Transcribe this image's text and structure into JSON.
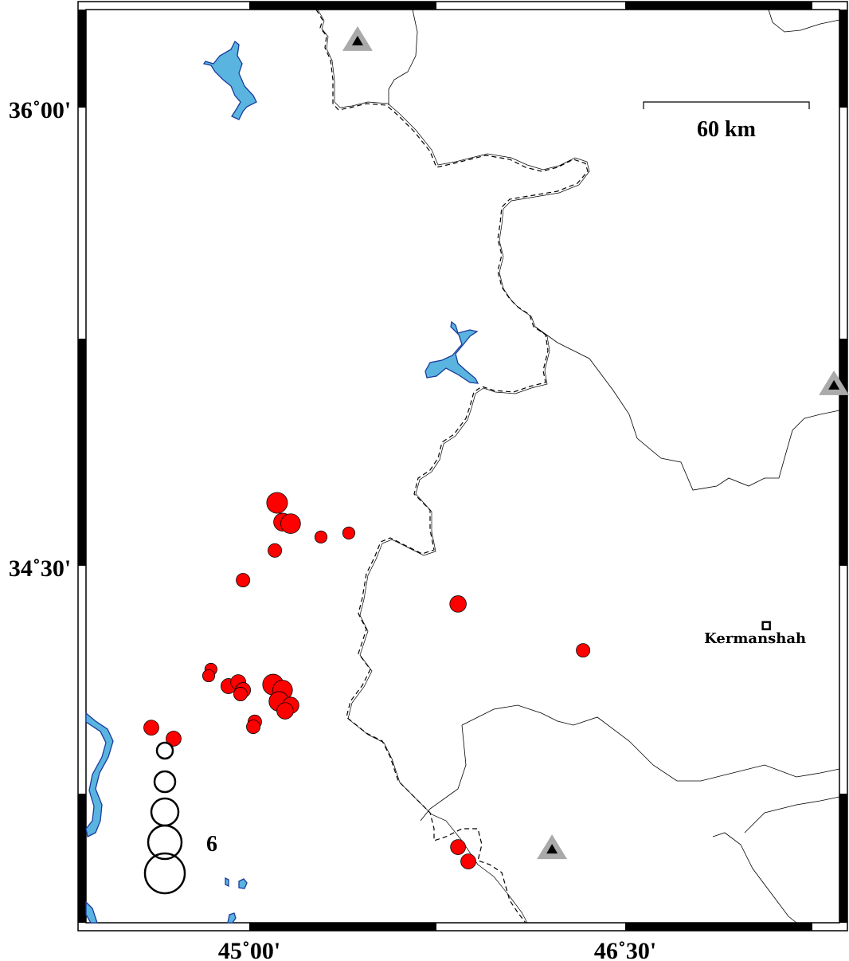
{
  "map": {
    "axes": {
      "lon_ticks": [
        {
          "value": 45.0,
          "label": "45˚00'"
        },
        {
          "value": 46.5,
          "label": "46˚30'"
        }
      ],
      "lat_ticks": [
        {
          "value": 36.0,
          "label": "36˚00'"
        },
        {
          "value": 34.5,
          "label": "34˚30'"
        }
      ]
    },
    "scale_bar": {
      "label": "60 km",
      "length_km": 60
    },
    "city": {
      "name": "Kermanshah",
      "lon": 47.063,
      "lat": 34.304
    },
    "stations": [
      {
        "lon": 45.432,
        "lat": 36.217
      },
      {
        "lon": 47.333,
        "lat": 35.09
      },
      {
        "lon": 46.208,
        "lat": 33.571
      }
    ],
    "earthquakes": [
      {
        "lon": 45.111,
        "lat": 34.706,
        "mag": 5.8
      },
      {
        "lon": 45.133,
        "lat": 34.643,
        "mag": 5.0
      },
      {
        "lon": 45.165,
        "lat": 34.638,
        "mag": 5.5
      },
      {
        "lon": 45.102,
        "lat": 34.55,
        "mag": 3.8
      },
      {
        "lon": 45.286,
        "lat": 34.594,
        "mag": 3.4
      },
      {
        "lon": 45.397,
        "lat": 34.607,
        "mag": 3.4
      },
      {
        "lon": 44.975,
        "lat": 34.453,
        "mag": 3.8
      },
      {
        "lon": 45.833,
        "lat": 34.375,
        "mag": 4.6
      },
      {
        "lon": 46.332,
        "lat": 34.223,
        "mag": 3.8
      },
      {
        "lon": 44.847,
        "lat": 34.161,
        "mag": 3.4
      },
      {
        "lon": 44.838,
        "lat": 34.14,
        "mag": 3.4
      },
      {
        "lon": 44.917,
        "lat": 34.106,
        "mag": 4.2
      },
      {
        "lon": 44.956,
        "lat": 34.119,
        "mag": 4.2
      },
      {
        "lon": 44.975,
        "lat": 34.093,
        "mag": 4.2
      },
      {
        "lon": 44.965,
        "lat": 34.08,
        "mag": 3.8
      },
      {
        "lon": 45.095,
        "lat": 34.111,
        "mag": 5.8
      },
      {
        "lon": 45.133,
        "lat": 34.093,
        "mag": 5.5
      },
      {
        "lon": 45.118,
        "lat": 34.056,
        "mag": 5.5
      },
      {
        "lon": 45.165,
        "lat": 34.043,
        "mag": 4.6
      },
      {
        "lon": 45.143,
        "lat": 34.025,
        "mag": 4.6
      },
      {
        "lon": 45.022,
        "lat": 33.989,
        "mag": 3.8
      },
      {
        "lon": 45.016,
        "lat": 33.973,
        "mag": 3.8
      },
      {
        "lon": 44.609,
        "lat": 33.97,
        "mag": 4.2
      },
      {
        "lon": 44.698,
        "lat": 33.934,
        "mag": 4.2
      },
      {
        "lon": 45.833,
        "lat": 33.579,
        "mag": 4.2
      },
      {
        "lon": 45.874,
        "lat": 33.532,
        "mag": 4.2
      }
    ],
    "legend": {
      "label": "6"
    },
    "colors": {
      "earthquake": "#ff0000",
      "water": "#5ab4e0",
      "water_outline": "#1a3a9a",
      "station_outer": "#aaaaaa",
      "station_inner": "#000000"
    }
  }
}
